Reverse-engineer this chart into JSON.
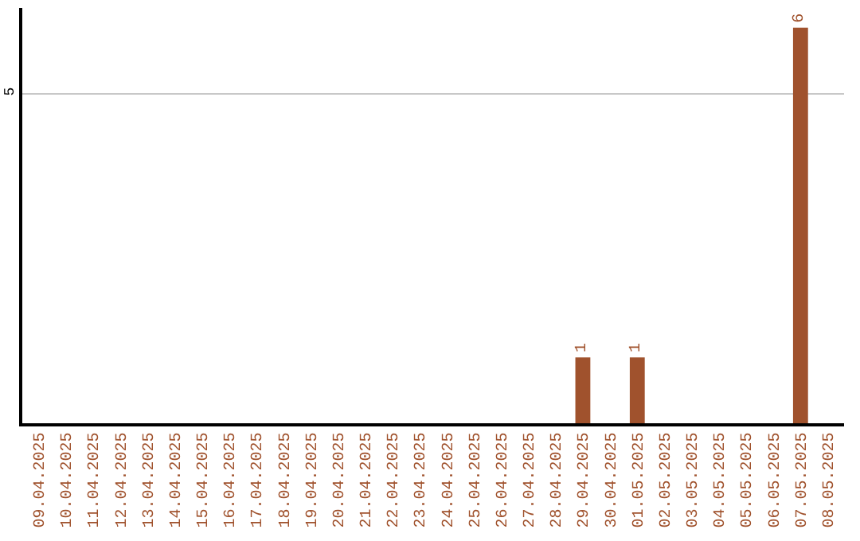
{
  "chart_data": {
    "type": "bar",
    "categories": [
      "09.04.2025",
      "10.04.2025",
      "11.04.2025",
      "12.04.2025",
      "13.04.2025",
      "14.04.2025",
      "15.04.2025",
      "16.04.2025",
      "17.04.2025",
      "18.04.2025",
      "19.04.2025",
      "20.04.2025",
      "21.04.2025",
      "22.04.2025",
      "23.04.2025",
      "24.04.2025",
      "25.04.2025",
      "26.04.2025",
      "27.04.2025",
      "28.04.2025",
      "29.04.2025",
      "30.04.2025",
      "01.05.2025",
      "02.05.2025",
      "03.05.2025",
      "04.05.2025",
      "05.05.2025",
      "06.05.2025",
      "07.05.2025",
      "08.05.2025"
    ],
    "values": [
      null,
      null,
      null,
      null,
      null,
      null,
      null,
      null,
      null,
      null,
      null,
      null,
      null,
      null,
      null,
      null,
      null,
      null,
      null,
      null,
      1,
      null,
      1,
      null,
      null,
      null,
      null,
      null,
      6,
      null
    ],
    "data_labels": true,
    "color": "#a0522d",
    "ylim": [
      0,
      6.3
    ],
    "yticks": [
      {
        "value": 0,
        "label": null
      },
      5
    ],
    "grid": "y",
    "legend": false
  }
}
